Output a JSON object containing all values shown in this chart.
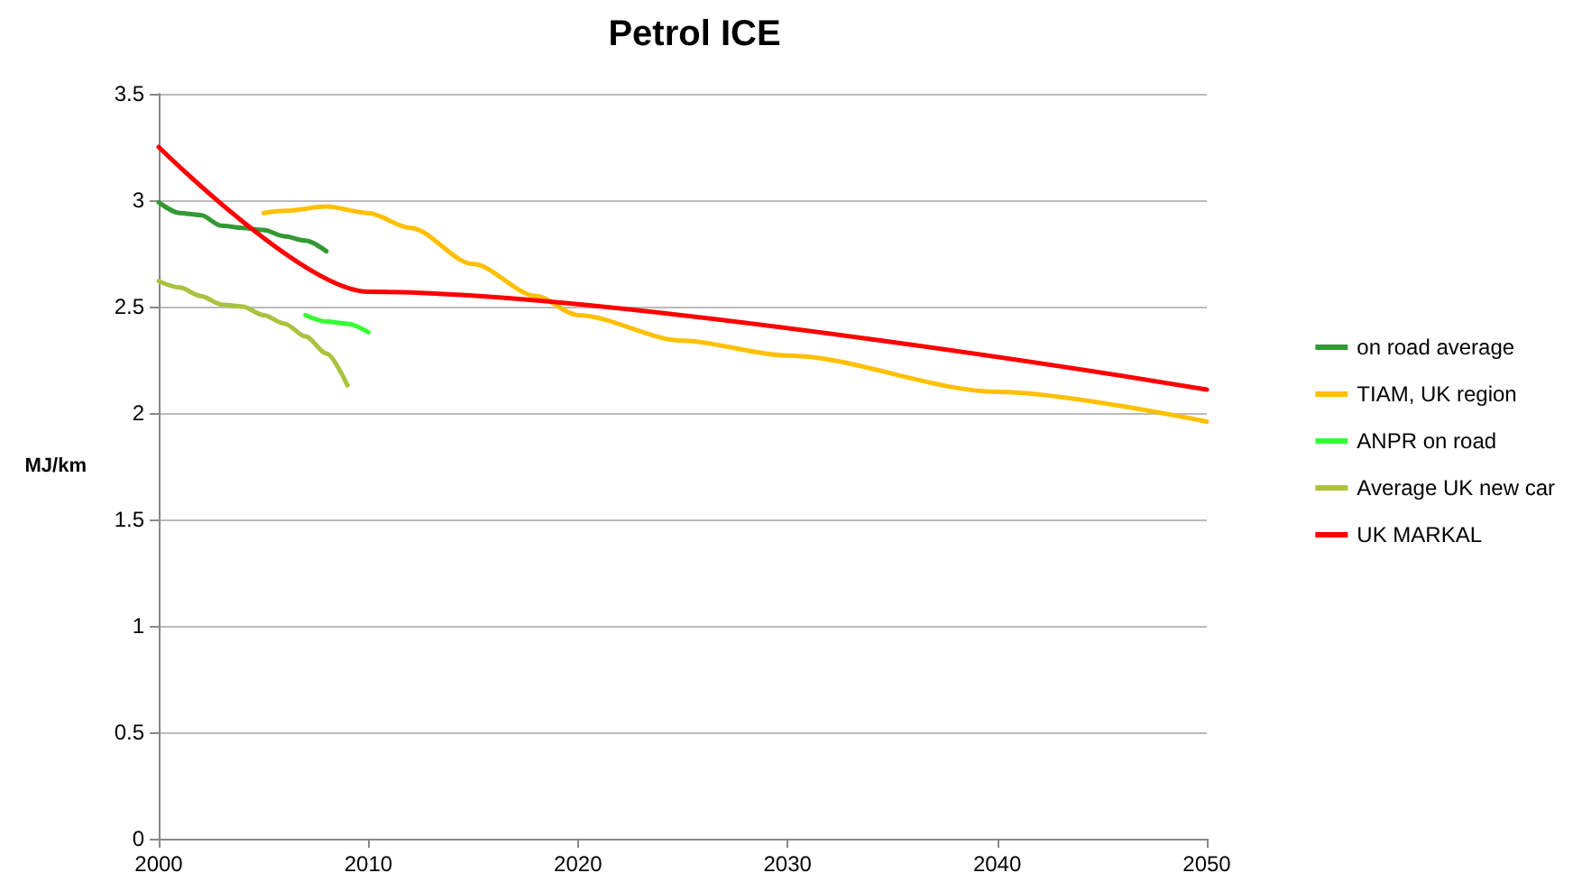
{
  "chart_data": {
    "type": "line",
    "title": "Petrol ICE",
    "ylabel": "MJ/km",
    "xlim": [
      2000,
      2050
    ],
    "xticks": [
      2000,
      2010,
      2020,
      2030,
      2040,
      2050
    ],
    "ylim": [
      0,
      3.5
    ],
    "yticks": [
      0,
      0.5,
      1,
      1.5,
      2,
      2.5,
      3,
      3.5
    ],
    "grid": "y",
    "legend": "right",
    "marker": "none",
    "line_style": "solid",
    "series": [
      {
        "name": "on road average",
        "color": "#339933",
        "x": [
          2000,
          2001,
          2002,
          2003,
          2004,
          2005,
          2006,
          2007,
          2008
        ],
        "values": [
          2.99,
          2.94,
          2.93,
          2.88,
          2.87,
          2.86,
          2.83,
          2.81,
          2.76
        ]
      },
      {
        "name": "TIAM, UK region",
        "color": "#ffc000",
        "x": [
          2005,
          2006,
          2008,
          2010,
          2012,
          2015,
          2018,
          2020,
          2025,
          2030,
          2040,
          2050
        ],
        "values": [
          2.94,
          2.95,
          2.97,
          2.94,
          2.87,
          2.7,
          2.55,
          2.46,
          2.34,
          2.27,
          2.1,
          1.96
        ]
      },
      {
        "name": "ANPR on road",
        "color": "#33ff33",
        "x": [
          2007,
          2008,
          2009,
          2010
        ],
        "values": [
          2.46,
          2.43,
          2.42,
          2.38
        ]
      },
      {
        "name": "Average UK new car",
        "color": "#a9c23f",
        "x": [
          2000,
          2001,
          2002,
          2003,
          2004,
          2005,
          2006,
          2007,
          2008,
          2009
        ],
        "values": [
          2.62,
          2.59,
          2.55,
          2.51,
          2.5,
          2.46,
          2.42,
          2.36,
          2.28,
          2.13
        ]
      },
      {
        "name": "UK MARKAL",
        "color": "#ff0000",
        "x": [
          2000,
          2010,
          2050
        ],
        "values": [
          3.25,
          2.57,
          2.11
        ]
      }
    ]
  }
}
